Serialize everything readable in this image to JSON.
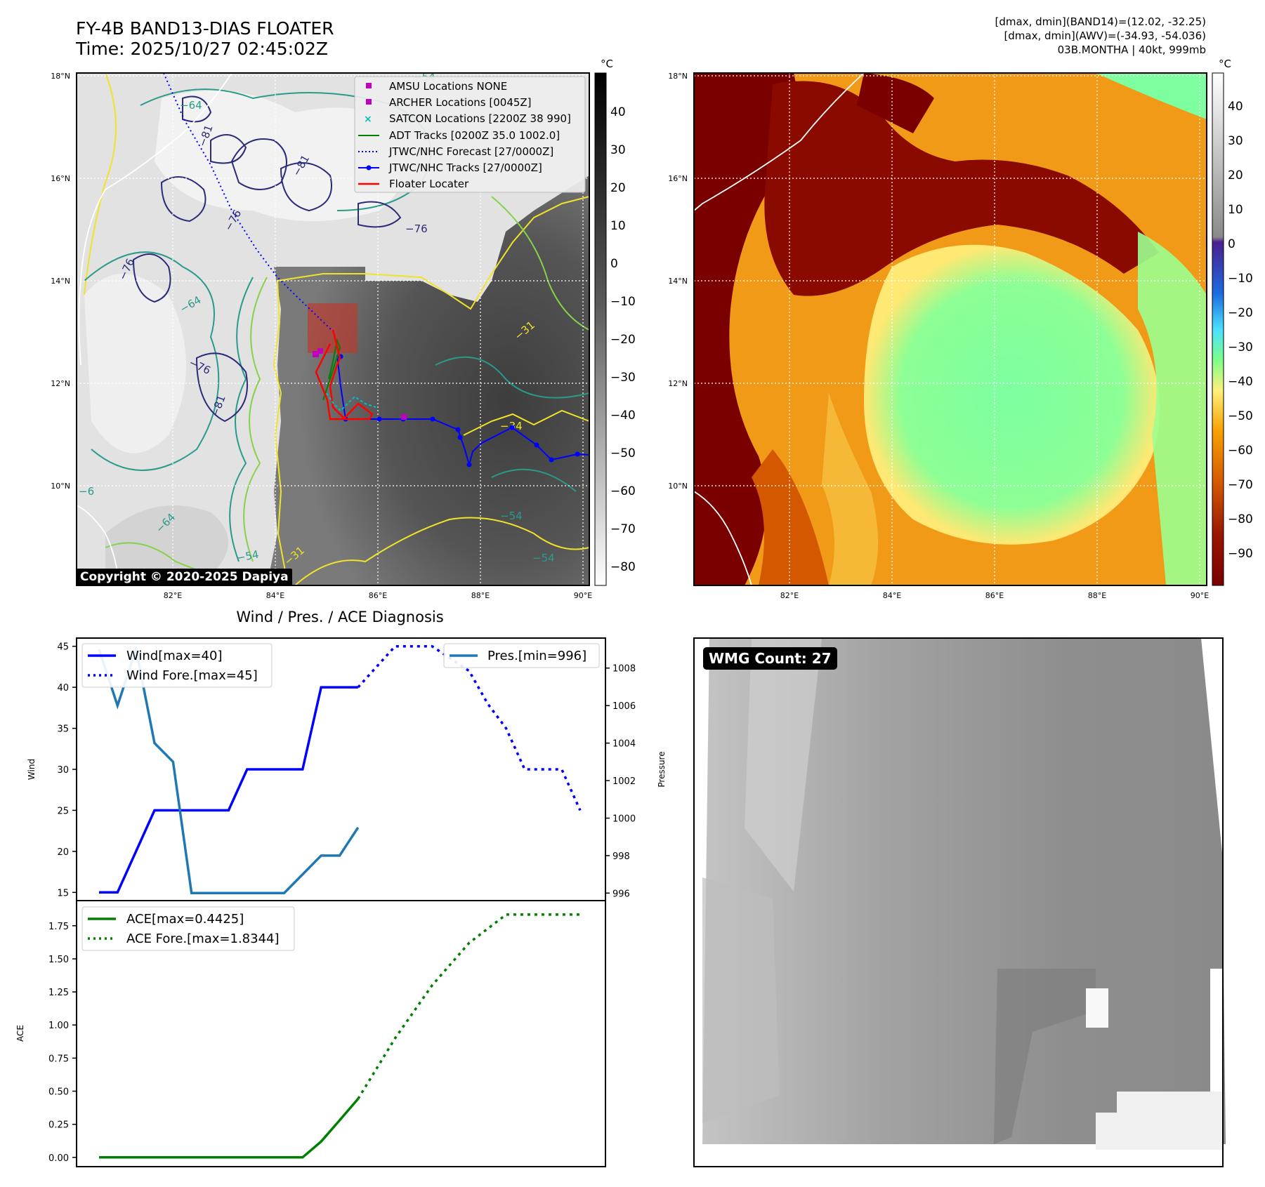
{
  "header": {
    "title_line1": "FY-4B BAND13-DIAS FLOATER",
    "title_line2": "Time: 2025/10/27 02:45:02Z",
    "info_line1": "[dmax, dmin](BAND14)=(12.02, -32.25)",
    "info_line2": "[dmax, dmin](AWV)=(-34.93, -54.036)",
    "info_line3": "03B.MONTHA | 40kt, 999mb"
  },
  "map_left": {
    "lat_ticks": [
      "18°N",
      "16°N",
      "14°N",
      "12°N",
      "10°N"
    ],
    "lon_ticks": [
      "82°E",
      "84°E",
      "86°E",
      "88°E",
      "90°E"
    ],
    "colorbar_unit": "°C",
    "colorbar_ticks": [
      "40",
      "30",
      "20",
      "10",
      "0",
      "−10",
      "−20",
      "−30",
      "−40",
      "−50",
      "−60",
      "−70",
      "−80"
    ],
    "contour_labels": [
      "−64",
      "−81",
      "−81",
      "−76",
      "−76",
      "−76",
      "−64",
      "−76",
      "−81",
      "−54",
      "−34",
      "−54",
      "−54",
      "−64",
      "−31",
      "−54",
      "−6",
      "−31"
    ],
    "copyright": "Copyright © 2020-2025 Dapiya",
    "legend": {
      "amsu": "AMSU Locations NONE",
      "archer": "ARCHER Locations [0045Z]",
      "satcon": "SATCON Locations [2200Z 38 990]",
      "adt": "ADT Tracks [0200Z 35.0 1002.0]",
      "forecast": "JTWC/NHC Forecast [27/0000Z]",
      "tracks": "JTWC/NHC Tracks [27/0000Z]",
      "floater": "Floater Locater"
    },
    "colors": {
      "adt": "#008000",
      "forecast": "#0000ff",
      "tracks": "#0000ff",
      "floater": "#ff0000",
      "archer": "#bf00bf",
      "satcon": "#00bfbf"
    }
  },
  "map_right": {
    "lat_ticks": [
      "18°N",
      "16°N",
      "14°N",
      "12°N",
      "10°N"
    ],
    "lon_ticks": [
      "82°E",
      "84°E",
      "86°E",
      "88°E",
      "90°E"
    ],
    "colorbar_unit": "°C",
    "colorbar_ticks": [
      "40",
      "30",
      "20",
      "10",
      "0",
      "−10",
      "−20",
      "−30",
      "−40",
      "−50",
      "−60",
      "−70",
      "−80",
      "−90"
    ]
  },
  "wmg": {
    "label": "WMG Count: 27"
  },
  "chart_data": [
    {
      "type": "line",
      "title": "Wind / Pres. / ACE Diagnosis",
      "xlabel": "",
      "ylabel": "Wind",
      "ylabel_right": "Pressure",
      "ylim": [
        14,
        46
      ],
      "ylim_right": [
        995.6,
        1009.6
      ],
      "y_ticks": [
        "45",
        "40",
        "35",
        "30",
        "25",
        "20",
        "15"
      ],
      "y_ticks_right": [
        "1008",
        "1006",
        "1004",
        "1002",
        "1000",
        "998",
        "996"
      ],
      "series": [
        {
          "name": "Wind[max=40]",
          "color": "#0000ff",
          "style": "solid",
          "x": [
            0,
            1,
            3,
            7,
            8,
            11,
            12,
            14
          ],
          "values": [
            15,
            15,
            25,
            25,
            30,
            30,
            40,
            40
          ]
        },
        {
          "name": "Wind Fore.[max=45]",
          "color": "#0000ff",
          "style": "dotted",
          "x": [
            14,
            16,
            18,
            20,
            21,
            22,
            23,
            24,
            25,
            26
          ],
          "values": [
            40,
            45,
            45,
            42,
            38,
            35,
            30,
            30,
            30,
            25
          ]
        },
        {
          "name": "Pres.[min=996]",
          "color": "#1f77b4",
          "style": "solid",
          "axis": "right",
          "x": [
            0,
            1,
            2,
            3,
            4,
            5,
            10,
            12,
            13,
            14
          ],
          "values": [
            1009,
            1006,
            1009,
            1004,
            1003,
            996,
            996,
            998,
            998,
            999.5
          ]
        }
      ]
    },
    {
      "type": "line",
      "xlabel": "",
      "ylabel": "ACE",
      "ylim": [
        -0.07,
        1.94
      ],
      "y_ticks": [
        "1.75",
        "1.50",
        "1.25",
        "1.00",
        "0.75",
        "0.50",
        "0.25",
        "0.00"
      ],
      "series": [
        {
          "name": "ACE[max=0.4425]",
          "color": "#008000",
          "style": "solid",
          "x": [
            0,
            11,
            12,
            13,
            14
          ],
          "values": [
            0,
            0,
            0.12,
            0.28,
            0.4425
          ]
        },
        {
          "name": "ACE Fore.[max=1.8344]",
          "color": "#008000",
          "style": "dotted",
          "x": [
            14,
            16,
            18,
            20,
            22,
            24,
            26
          ],
          "values": [
            0.4425,
            0.9,
            1.3,
            1.62,
            1.8344,
            1.8344,
            1.8344
          ]
        }
      ]
    }
  ]
}
